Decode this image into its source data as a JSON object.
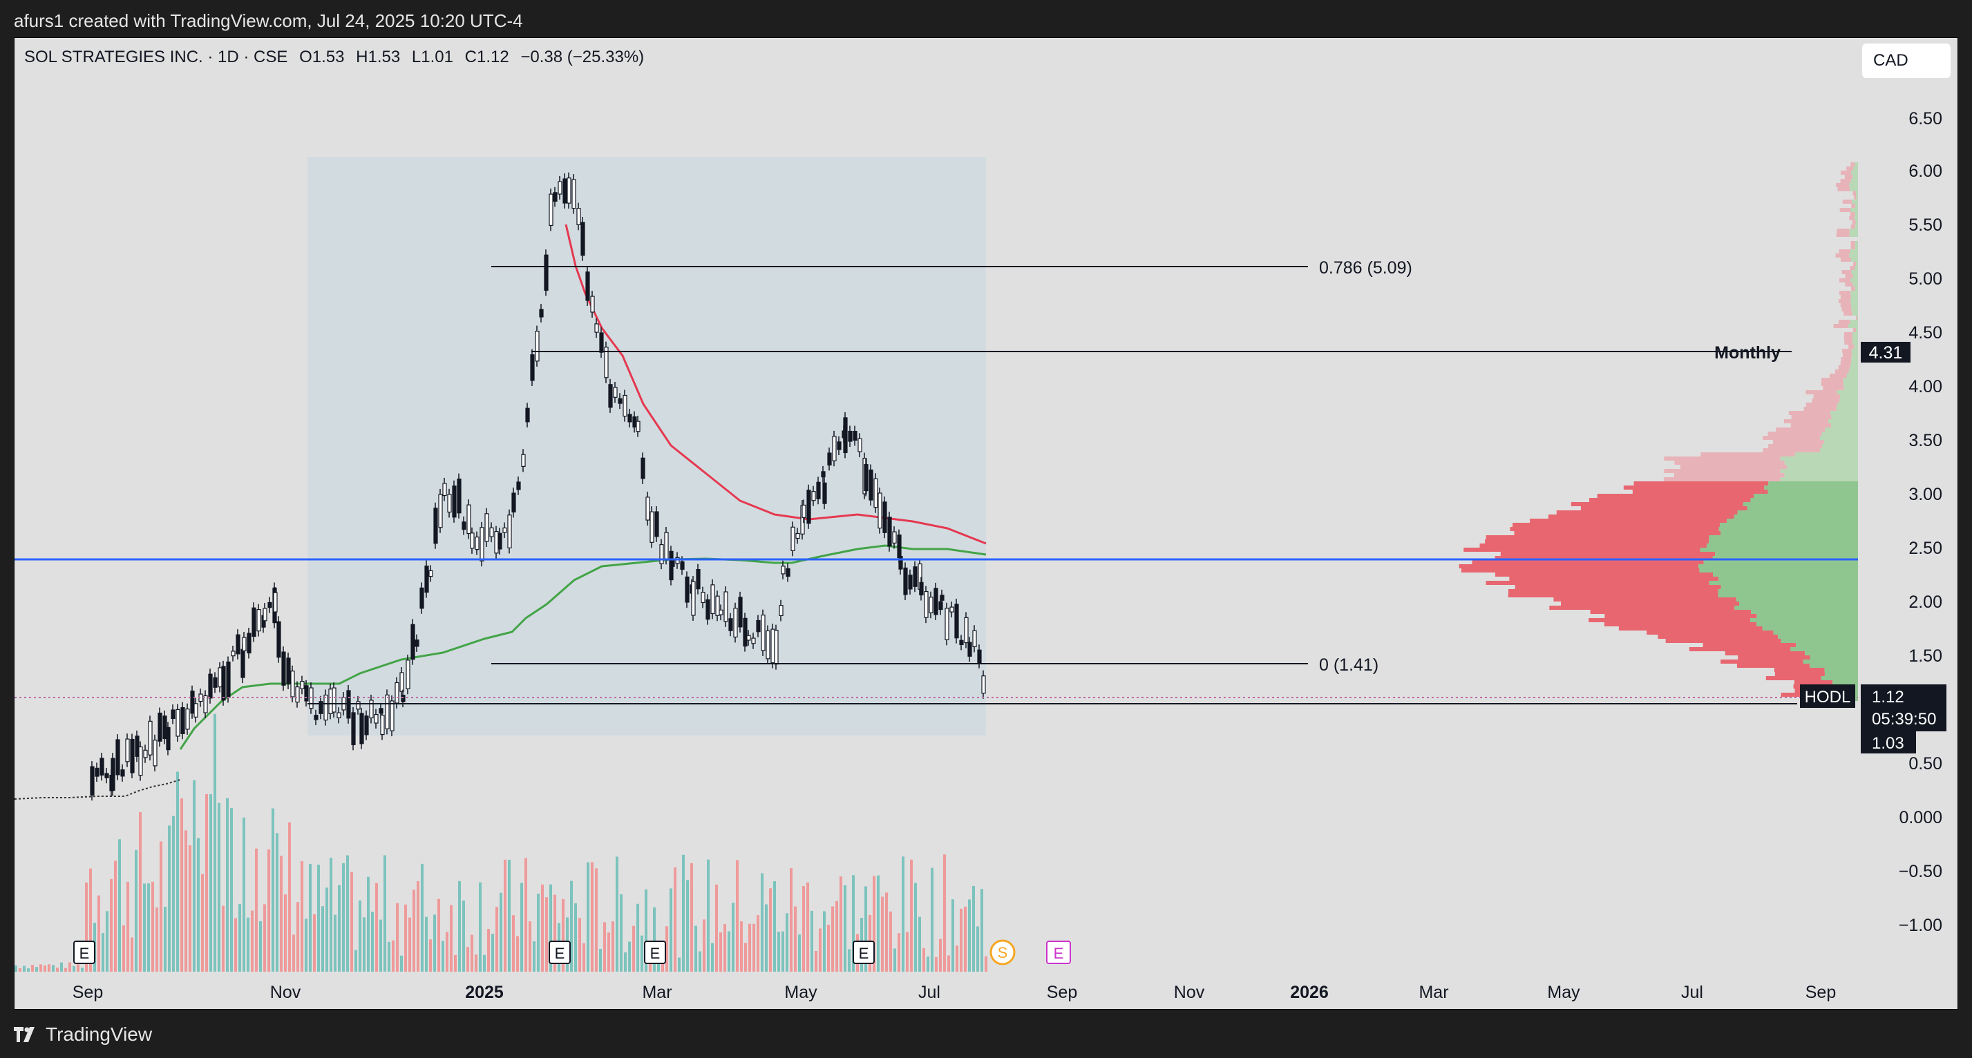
{
  "header": {
    "attribution": "afurs1 created with TradingView.com, Jul 24, 2025 10:20 UTC-4"
  },
  "legend": {
    "symbol": "SOL STRATEGIES INC. · 1D · CSE",
    "open_label": "O",
    "open": "1.53",
    "high_label": "H",
    "high": "1.53",
    "low_label": "L",
    "low": "1.01",
    "close_label": "C",
    "close": "1.12",
    "change": "−0.38 (−25.33%)"
  },
  "currency": "CAD",
  "price_axis": [
    "6.50",
    "6.00",
    "5.50",
    "5.00",
    "4.50",
    "4.00",
    "3.50",
    "3.00",
    "2.50",
    "2.00",
    "1.50",
    "0.50",
    "0.000",
    "−0.50",
    "−1.00"
  ],
  "time_axis": [
    "Sep",
    "Nov",
    "2025",
    "Mar",
    "May",
    "Jul",
    "Sep",
    "Nov",
    "2026",
    "Mar",
    "May",
    "Jul",
    "Sep"
  ],
  "annotations": {
    "fib_786": "0.786 (5.09)",
    "fib_0": "0 (1.41)",
    "monthly_label": "Monthly",
    "monthly_value": "4.31",
    "hodl_label": "HODL",
    "last_price": "1.12",
    "countdown": "05:39:50",
    "low_marker": "1.03"
  },
  "event_markers": {
    "earnings": "E",
    "split": "S"
  },
  "footer": {
    "brand": "TradingView"
  },
  "colors": {
    "bull": "#7cc3bd",
    "bear": "#ef9a9a",
    "ma_red": "#e53950",
    "ma_green": "#43a447",
    "blue_line": "#2962ff",
    "vp_red": "#e8666f",
    "vp_green": "#8fc68f"
  },
  "chart_data": {
    "type": "candlestick",
    "interval": "1D",
    "y_axis_range": [
      -1.3,
      6.8
    ],
    "series_sample_close": [
      {
        "date": "2024-09",
        "close": 0.25
      },
      {
        "date": "2024-10-01",
        "close": 0.45
      },
      {
        "date": "2024-10-15",
        "close": 1.5
      },
      {
        "date": "2024-10-22",
        "close": 2.2
      },
      {
        "date": "2024-11-05",
        "close": 1.3
      },
      {
        "date": "2024-12-01",
        "close": 1.3
      },
      {
        "date": "2024-12-15",
        "close": 2.9
      },
      {
        "date": "2025-01-01",
        "close": 2.8
      },
      {
        "date": "2025-01-15",
        "close": 5.9
      },
      {
        "date": "2025-01-25",
        "close": 5.1
      },
      {
        "date": "2025-02-10",
        "close": 3.6
      },
      {
        "date": "2025-03-01",
        "close": 2.3
      },
      {
        "date": "2025-03-15",
        "close": 2.6
      },
      {
        "date": "2025-04-01",
        "close": 1.9
      },
      {
        "date": "2025-04-15",
        "close": 1.45
      },
      {
        "date": "2025-04-25",
        "close": 2.3
      },
      {
        "date": "2025-05-01",
        "close": 3.2
      },
      {
        "date": "2025-05-20",
        "close": 4.0
      },
      {
        "date": "2025-06-01",
        "close": 3.0
      },
      {
        "date": "2025-06-20",
        "close": 2.4
      },
      {
        "date": "2025-07-10",
        "close": 1.9
      },
      {
        "date": "2025-07-24",
        "close": 1.12
      }
    ]
  }
}
